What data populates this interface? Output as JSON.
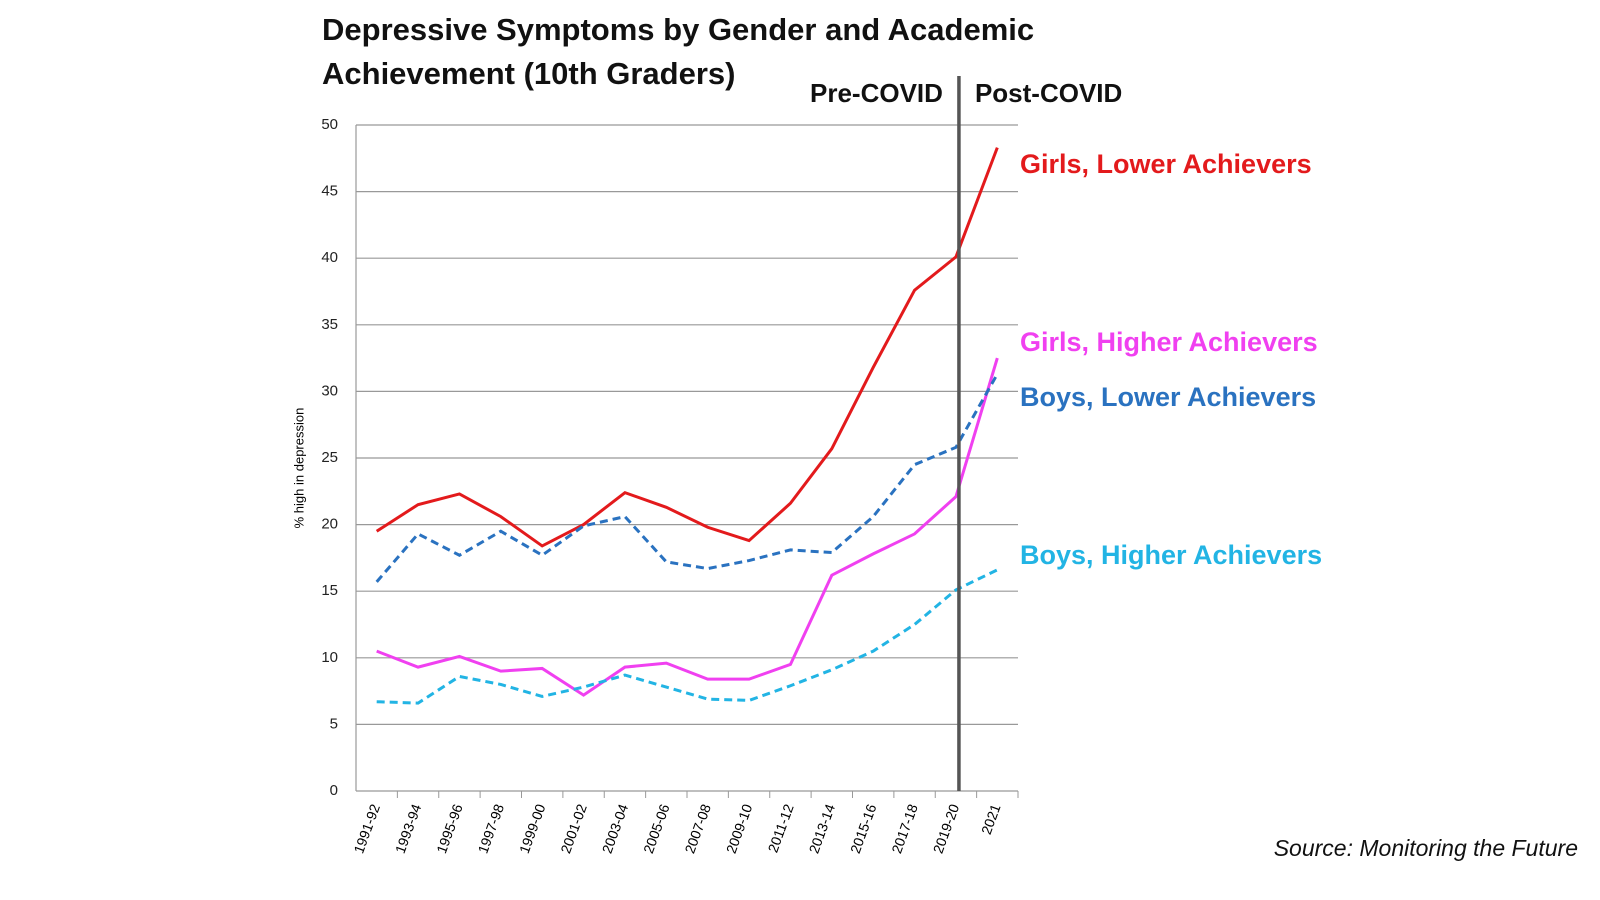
{
  "chart_data": {
    "type": "line",
    "title": "Depressive Symptoms by Gender and Academic Achievement (10th Graders)",
    "y_label": "% high in depression",
    "source": "Source: Monitoring the Future",
    "annotations": [
      "Pre-COVID",
      "Post-COVID"
    ],
    "divider_category": "2019-20",
    "categories": [
      "1991-92",
      "1993-94",
      "1995-96",
      "1997-98",
      "1999-00",
      "2001-02",
      "2003-04",
      "2005-06",
      "2007-08",
      "2009-10",
      "2011-12",
      "2013-14",
      "2015-16",
      "2017-18",
      "2019-20",
      "2021"
    ],
    "series": [
      {
        "name": "Girls, Lower Achievers",
        "color": "#e31a1c",
        "dashed": false,
        "values": [
          19.5,
          21.5,
          22.3,
          20.6,
          18.4,
          20.0,
          22.4,
          21.3,
          19.8,
          18.8,
          21.6,
          25.7,
          31.8,
          37.6,
          40.1,
          48.3
        ]
      },
      {
        "name": "Girls, Higher Achievers",
        "color": "#f040f0",
        "dashed": false,
        "values": [
          10.5,
          9.3,
          10.1,
          9.0,
          9.2,
          7.2,
          9.3,
          9.6,
          8.4,
          8.4,
          9.5,
          16.2,
          17.8,
          19.3,
          22.1,
          32.5
        ]
      },
      {
        "name": "Boys, Lower Achievers",
        "color": "#2a72c0",
        "dashed": true,
        "values": [
          15.7,
          19.3,
          17.7,
          19.5,
          17.7,
          19.9,
          20.6,
          17.2,
          16.7,
          17.3,
          18.1,
          17.9,
          20.6,
          24.5,
          25.8,
          31.3
        ]
      },
      {
        "name": "Boys, Higher Achievers",
        "color": "#22b4e4",
        "dashed": true,
        "values": [
          6.7,
          6.6,
          8.6,
          8.0,
          7.1,
          7.8,
          8.7,
          7.8,
          6.9,
          6.8,
          7.9,
          9.1,
          10.5,
          12.5,
          15.1,
          16.6
        ]
      }
    ],
    "ylim": [
      0,
      50
    ],
    "yticks": [
      0,
      5,
      10,
      15,
      20,
      25,
      30,
      35,
      40,
      45,
      50
    ],
    "grid": true
  }
}
